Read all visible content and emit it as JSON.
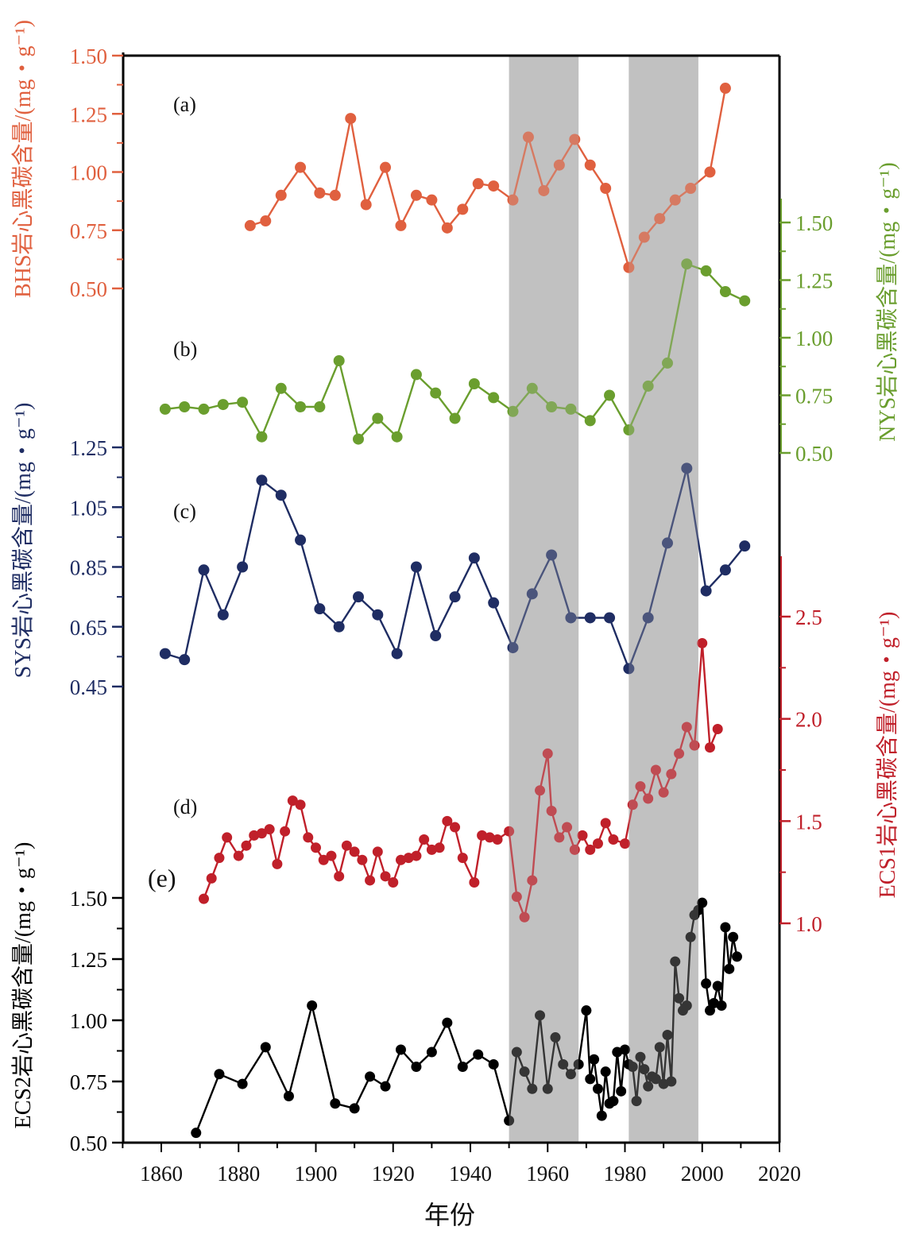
{
  "chart_data": {
    "type": "line",
    "title": "",
    "xlabel": "年份",
    "xlim": [
      1850,
      2020
    ],
    "x_ticks": [
      "1860",
      "1880",
      "1900",
      "1920",
      "1940",
      "1960",
      "1980",
      "2000",
      "2020"
    ],
    "shaded_periods": [
      [
        1950,
        1968
      ],
      [
        1981,
        1999
      ]
    ],
    "panels": [
      {
        "id": "a",
        "label": "(a)",
        "name": "BHS",
        "color": "#e0603f",
        "side": "left",
        "ylabel": "BHS岩心黑碳含量/(mg・g⁻¹)",
        "ylim": [
          0.5,
          1.5
        ],
        "y_ticks": [
          "0.50",
          "0.75",
          "1.00",
          "1.25",
          "1.50"
        ],
        "x": [
          1883,
          1887,
          1891,
          1896,
          1901,
          1905,
          1909,
          1913,
          1918,
          1922,
          1926,
          1930,
          1934,
          1938,
          1942,
          1946,
          1951,
          1955,
          1959,
          1963,
          1967,
          1971,
          1975,
          1981,
          1985,
          1989,
          1993,
          1997,
          2002,
          2006
        ],
        "y": [
          0.77,
          0.79,
          0.9,
          1.02,
          0.91,
          0.9,
          1.23,
          0.86,
          1.02,
          0.77,
          0.9,
          0.88,
          0.76,
          0.84,
          0.95,
          0.94,
          0.88,
          1.15,
          0.92,
          1.03,
          1.14,
          1.03,
          0.93,
          0.59,
          0.72,
          0.8,
          0.88,
          0.93,
          1.0,
          1.36
        ]
      },
      {
        "id": "b",
        "label": "(b)",
        "name": "NYS",
        "color": "#6a9e2e",
        "side": "right",
        "ylabel": "NYS岩心黑碳含量/(mg・g⁻¹)",
        "ylim": [
          0.5,
          1.5
        ],
        "y_ticks": [
          "0.50",
          "0.75",
          "1.00",
          "1.25",
          "1.50"
        ],
        "x": [
          1861,
          1866,
          1871,
          1876,
          1881,
          1886,
          1891,
          1896,
          1901,
          1906,
          1911,
          1916,
          1921,
          1926,
          1931,
          1936,
          1941,
          1946,
          1951,
          1956,
          1961,
          1966,
          1971,
          1976,
          1981,
          1986,
          1991,
          1996,
          2001,
          2006,
          2011
        ],
        "y": [
          0.69,
          0.7,
          0.69,
          0.71,
          0.72,
          0.57,
          0.78,
          0.7,
          0.7,
          0.9,
          0.56,
          0.65,
          0.57,
          0.84,
          0.76,
          0.65,
          0.8,
          0.74,
          0.68,
          0.78,
          0.7,
          0.69,
          0.64,
          0.75,
          0.6,
          0.79,
          0.89,
          1.32,
          1.29,
          1.2,
          1.16
        ]
      },
      {
        "id": "c",
        "label": "(c)",
        "name": "SYS",
        "color": "#1f2d63",
        "side": "left",
        "ylabel": "SYS岩心黑碳含量/(mg・g⁻¹)",
        "ylim": [
          0.45,
          1.25
        ],
        "y_ticks": [
          "0.45",
          "0.65",
          "0.85",
          "1.05",
          "1.25"
        ],
        "x": [
          1861,
          1866,
          1871,
          1876,
          1881,
          1886,
          1891,
          1896,
          1901,
          1906,
          1911,
          1916,
          1921,
          1926,
          1931,
          1936,
          1941,
          1946,
          1951,
          1956,
          1961,
          1966,
          1971,
          1976,
          1981,
          1986,
          1991,
          1996,
          2001,
          2006,
          2011
        ],
        "y": [
          0.56,
          0.54,
          0.84,
          0.69,
          0.85,
          1.14,
          1.09,
          0.94,
          0.71,
          0.65,
          0.75,
          0.69,
          0.56,
          0.85,
          0.62,
          0.75,
          0.88,
          0.73,
          0.58,
          0.76,
          0.89,
          0.68,
          0.68,
          0.68,
          0.51,
          0.68,
          0.93,
          1.18,
          0.77,
          0.84,
          0.92
        ]
      },
      {
        "id": "d",
        "label": "(d)",
        "name": "ECS1",
        "color": "#c0202a",
        "side": "right",
        "ylabel": "ECS1岩心黑碳含量/(mg・g⁻¹)",
        "ylim": [
          1.0,
          2.5
        ],
        "y_ticks": [
          "1.0",
          "1.5",
          "2.0",
          "2.5"
        ],
        "x": [
          1871,
          1873,
          1875,
          1877,
          1880,
          1882,
          1884,
          1886,
          1888,
          1890,
          1892,
          1894,
          1896,
          1898,
          1900,
          1902,
          1904,
          1906,
          1908,
          1910,
          1912,
          1914,
          1916,
          1918,
          1920,
          1922,
          1924,
          1926,
          1928,
          1930,
          1932,
          1934,
          1936,
          1938,
          1941,
          1943,
          1945,
          1947,
          1950,
          1952,
          1954,
          1956,
          1958,
          1960,
          1961,
          1963,
          1965,
          1967,
          1969,
          1971,
          1973,
          1975,
          1977,
          1980,
          1982,
          1984,
          1986,
          1988,
          1990,
          1992,
          1994,
          1996,
          1998,
          2000,
          2002,
          2004
        ],
        "y": [
          1.12,
          1.22,
          1.32,
          1.42,
          1.33,
          1.38,
          1.43,
          1.44,
          1.46,
          1.29,
          1.45,
          1.6,
          1.58,
          1.42,
          1.37,
          1.31,
          1.33,
          1.23,
          1.38,
          1.35,
          1.31,
          1.21,
          1.35,
          1.23,
          1.2,
          1.31,
          1.32,
          1.33,
          1.41,
          1.36,
          1.37,
          1.5,
          1.47,
          1.32,
          1.2,
          1.43,
          1.42,
          1.41,
          1.45,
          1.13,
          1.03,
          1.21,
          1.65,
          1.83,
          1.55,
          1.42,
          1.47,
          1.36,
          1.43,
          1.36,
          1.39,
          1.49,
          1.41,
          1.39,
          1.58,
          1.67,
          1.61,
          1.75,
          1.64,
          1.73,
          1.83,
          1.96,
          1.87,
          2.37,
          1.86,
          1.95
        ]
      },
      {
        "id": "e",
        "label": "(e)",
        "name": "ECS2",
        "color": "#000000",
        "side": "left",
        "ylabel": "ECS2岩心黑碳含量/(mg・g⁻¹)",
        "ylim": [
          0.5,
          1.5
        ],
        "y_ticks": [
          "0.50",
          "0.75",
          "1.00",
          "1.25",
          "1.50"
        ],
        "x": [
          1869,
          1875,
          1881,
          1887,
          1893,
          1899,
          1905,
          1910,
          1914,
          1918,
          1922,
          1926,
          1930,
          1934,
          1938,
          1942,
          1946,
          1950,
          1952,
          1954,
          1956,
          1958,
          1960,
          1962,
          1964,
          1966,
          1968,
          1970,
          1971,
          1972,
          1973,
          1974,
          1975,
          1976,
          1977,
          1978,
          1979,
          1980,
          1981,
          1982,
          1983,
          1984,
          1985,
          1986,
          1987,
          1988,
          1989,
          1990,
          1991,
          1992,
          1993,
          1994,
          1995,
          1996,
          1997,
          1998,
          1999,
          2000,
          2001,
          2002,
          2003,
          2004,
          2005,
          2006,
          2007,
          2008,
          2009
        ],
        "y": [
          0.54,
          0.78,
          0.74,
          0.89,
          0.69,
          1.06,
          0.66,
          0.64,
          0.77,
          0.73,
          0.88,
          0.81,
          0.87,
          0.99,
          0.81,
          0.86,
          0.82,
          0.59,
          0.87,
          0.79,
          0.72,
          1.02,
          0.72,
          0.93,
          0.82,
          0.78,
          0.82,
          1.04,
          0.76,
          0.84,
          0.72,
          0.61,
          0.79,
          0.66,
          0.67,
          0.87,
          0.71,
          0.88,
          0.82,
          0.81,
          0.67,
          0.85,
          0.8,
          0.73,
          0.77,
          0.76,
          0.89,
          0.74,
          0.94,
          0.75,
          1.24,
          1.09,
          1.04,
          1.06,
          1.34,
          1.43,
          1.45,
          1.48,
          1.15,
          1.04,
          1.07,
          1.14,
          1.06,
          1.38,
          1.21,
          1.34,
          1.26
        ]
      }
    ]
  }
}
